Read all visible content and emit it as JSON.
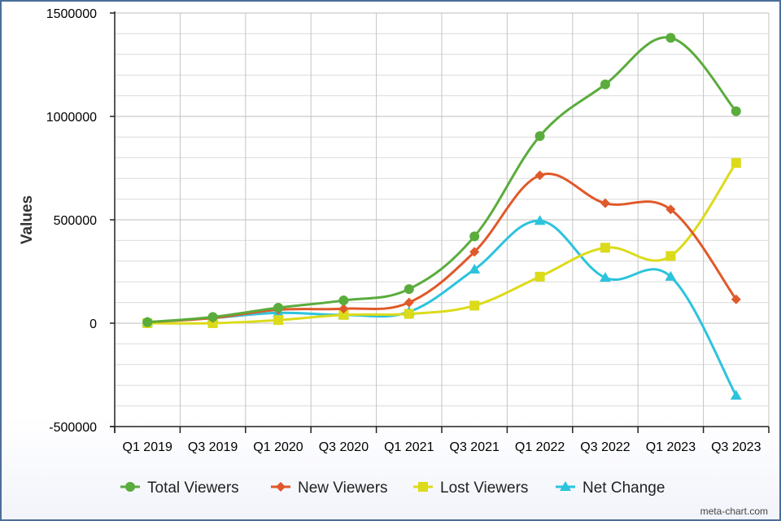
{
  "chart_data": {
    "type": "line",
    "ylabel": "Values",
    "xlabel": "",
    "ylim": [
      -500000,
      1500000
    ],
    "y_ticks": [
      -500000,
      0,
      500000,
      1000000,
      1500000
    ],
    "y_tick_labels": [
      "-500000",
      "0",
      "500000",
      "1000000",
      "1500000"
    ],
    "x_tick_labels": [
      "Q1 2019",
      "Q3 2019",
      "Q1 2020",
      "Q3 2020",
      "Q1 2021",
      "Q3 2021",
      "Q1 2022",
      "Q3 2022",
      "Q1 2023",
      "Q3 2023"
    ],
    "grid": true,
    "legend_position": "bottom",
    "series": [
      {
        "name": "Total Viewers",
        "color": "#5aac3c",
        "marker": "circle",
        "values": [
          5000,
          30000,
          75000,
          110000,
          165000,
          420000,
          905000,
          1155000,
          1380000,
          1025000
        ]
      },
      {
        "name": "New Viewers",
        "color": "#e0592a",
        "marker": "diamond",
        "values": [
          5000,
          25000,
          65000,
          70000,
          100000,
          345000,
          715000,
          580000,
          550000,
          115000
        ]
      },
      {
        "name": "Lost Viewers",
        "color": "#dbdb1a",
        "marker": "square",
        "values": [
          0,
          0,
          15000,
          40000,
          45000,
          85000,
          225000,
          365000,
          325000,
          775000
        ]
      },
      {
        "name": "Net Change",
        "color": "#2cc3dd",
        "marker": "triangle",
        "values": [
          5000,
          25000,
          50000,
          40000,
          55000,
          260000,
          495000,
          220000,
          225000,
          -350000
        ]
      }
    ]
  },
  "watermark": "meta-chart.com"
}
